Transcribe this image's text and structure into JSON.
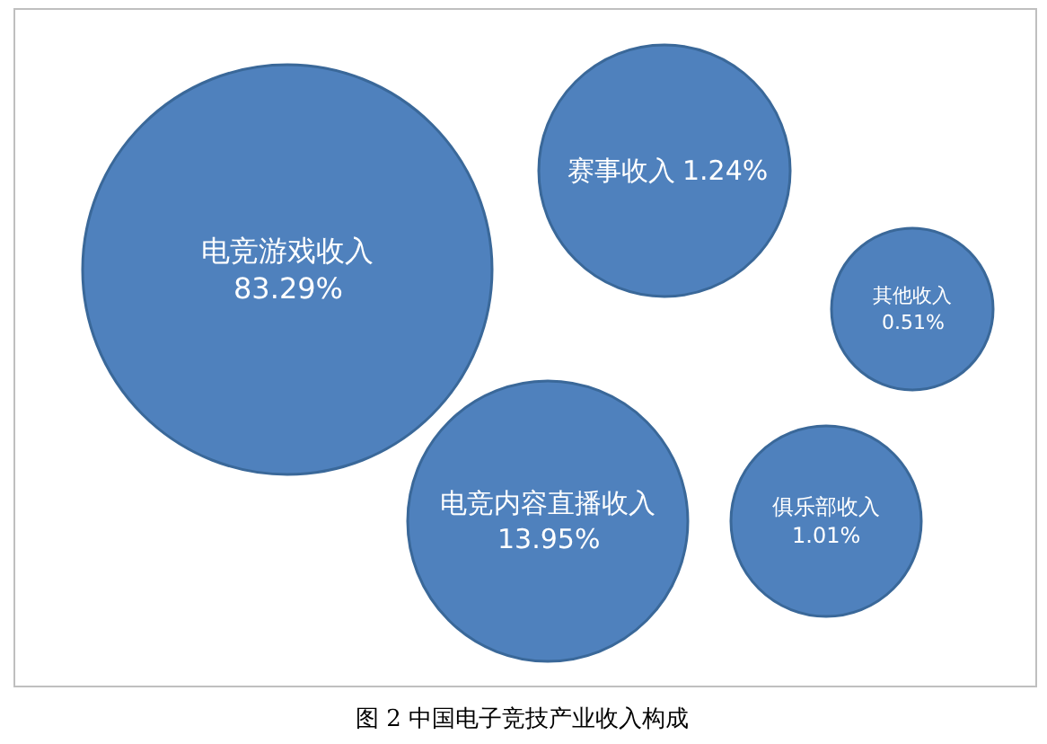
{
  "chart_data": {
    "type": "other",
    "categories": [
      "电竞游戏收入",
      "赛事收入",
      "其他收入",
      "电竞内容直播收入",
      "俱乐部收入"
    ],
    "values": [
      83.29,
      1.24,
      0.51,
      13.95,
      1.01
    ],
    "value_labels": [
      "83.29%",
      "1.24%",
      "0.51%",
      "13.95%",
      "1.01%"
    ],
    "color": "#4f81bd",
    "annotations": [
      "图 2 中国电子竞技产业收入构成"
    ]
  }
}
